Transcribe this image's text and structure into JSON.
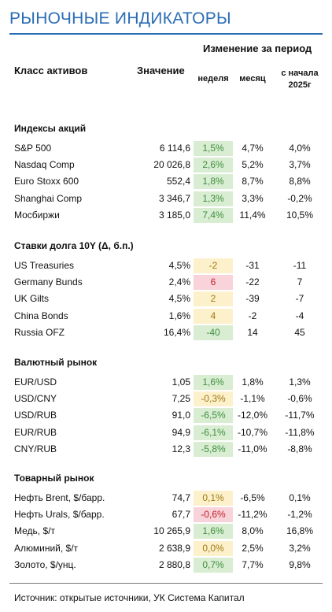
{
  "header": {
    "title": "РЫНОЧНЫЕ ИНДИКАТОРЫ",
    "col_asset": "Класс активов",
    "col_value": "Значение",
    "col_change": "Изменение за период",
    "col_week": "неделя",
    "col_month": "месяц",
    "col_ytd": "с начала 2025г"
  },
  "sections": [
    {
      "title": "Индексы акций",
      "rows": [
        {
          "name": "S&P 500",
          "value": "6 114,6",
          "week": "1,5%",
          "week_tone": "green",
          "month": "4,7%",
          "ytd": "4,0%"
        },
        {
          "name": "Nasdaq Comp",
          "value": "20 026,8",
          "week": "2,6%",
          "week_tone": "green",
          "month": "5,2%",
          "ytd": "3,7%"
        },
        {
          "name": "Euro Stoxx 600",
          "value": "552,4",
          "week": "1,8%",
          "week_tone": "green",
          "month": "8,7%",
          "ytd": "8,8%"
        },
        {
          "name": "Shanghai Comp",
          "value": "3 346,7",
          "week": "1,3%",
          "week_tone": "green",
          "month": "3,3%",
          "ytd": "-0,2%"
        },
        {
          "name": "Мосбиржи",
          "value": "3 185,0",
          "week": "7,4%",
          "week_tone": "green",
          "month": "11,4%",
          "ytd": "10,5%"
        }
      ]
    },
    {
      "title": "Ставки долга 10Y (Δ, б.п.)",
      "rows": [
        {
          "name": "US Treasuries",
          "value": "4,5%",
          "week": "-2",
          "week_tone": "yellow",
          "month": "-31",
          "ytd": "-11"
        },
        {
          "name": "Germany Bunds",
          "value": "2,4%",
          "week": "6",
          "week_tone": "red",
          "month": "-22",
          "ytd": "7"
        },
        {
          "name": "UK Gilts",
          "value": "4,5%",
          "week": "2",
          "week_tone": "yellow",
          "month": "-39",
          "ytd": "-7"
        },
        {
          "name": "China Bonds",
          "value": "1,6%",
          "week": "4",
          "week_tone": "yellow",
          "month": "-2",
          "ytd": "-4"
        },
        {
          "name": "Russia OFZ",
          "value": "16,4%",
          "week": "-40",
          "week_tone": "green",
          "month": "14",
          "ytd": "45"
        }
      ]
    },
    {
      "title": "Валютный рынок",
      "rows": [
        {
          "name": "EUR/USD",
          "value": "1,05",
          "week": "1,6%",
          "week_tone": "green",
          "month": "1,8%",
          "ytd": "1,3%"
        },
        {
          "name": "USD/CNY",
          "value": "7,25",
          "week": "-0,3%",
          "week_tone": "yellow",
          "month": "-1,1%",
          "ytd": "-0,6%"
        },
        {
          "name": "USD/RUB",
          "value": "91,0",
          "week": "-6,5%",
          "week_tone": "green",
          "month": "-12,0%",
          "ytd": "-11,7%"
        },
        {
          "name": "EUR/RUB",
          "value": "94,9",
          "week": "-6,1%",
          "week_tone": "green",
          "month": "-10,7%",
          "ytd": "-11,8%"
        },
        {
          "name": "CNY/RUB",
          "value": "12,3",
          "week": "-5,8%",
          "week_tone": "green",
          "month": "-11,0%",
          "ytd": "-8,8%"
        }
      ]
    },
    {
      "title": "Товарный рынок",
      "rows": [
        {
          "name": "Нефть Brent, $/барр.",
          "value": "74,7",
          "week": "0,1%",
          "week_tone": "yellow",
          "month": "-6,5%",
          "ytd": "0,1%"
        },
        {
          "name": "Нефть Urals, $/барр.",
          "value": "67,7",
          "week": "-0,6%",
          "week_tone": "red",
          "month": "-11,2%",
          "ytd": "-1,2%"
        },
        {
          "name": "Медь, $/т",
          "value": "10 265,9",
          "week": "1,6%",
          "week_tone": "green",
          "month": "8,0%",
          "ytd": "16,8%"
        },
        {
          "name": "Алюминий, $/т",
          "value": "2 638,9",
          "week": "0,0%",
          "week_tone": "yellow",
          "month": "2,5%",
          "ytd": "3,2%"
        },
        {
          "name": "Золото, $/унц.",
          "value": "2 880,8",
          "week": "0,7%",
          "week_tone": "green",
          "month": "7,7%",
          "ytd": "9,8%"
        }
      ]
    }
  ],
  "footer": {
    "source": "Источник: открытые источники, УК Система Капитал"
  }
}
